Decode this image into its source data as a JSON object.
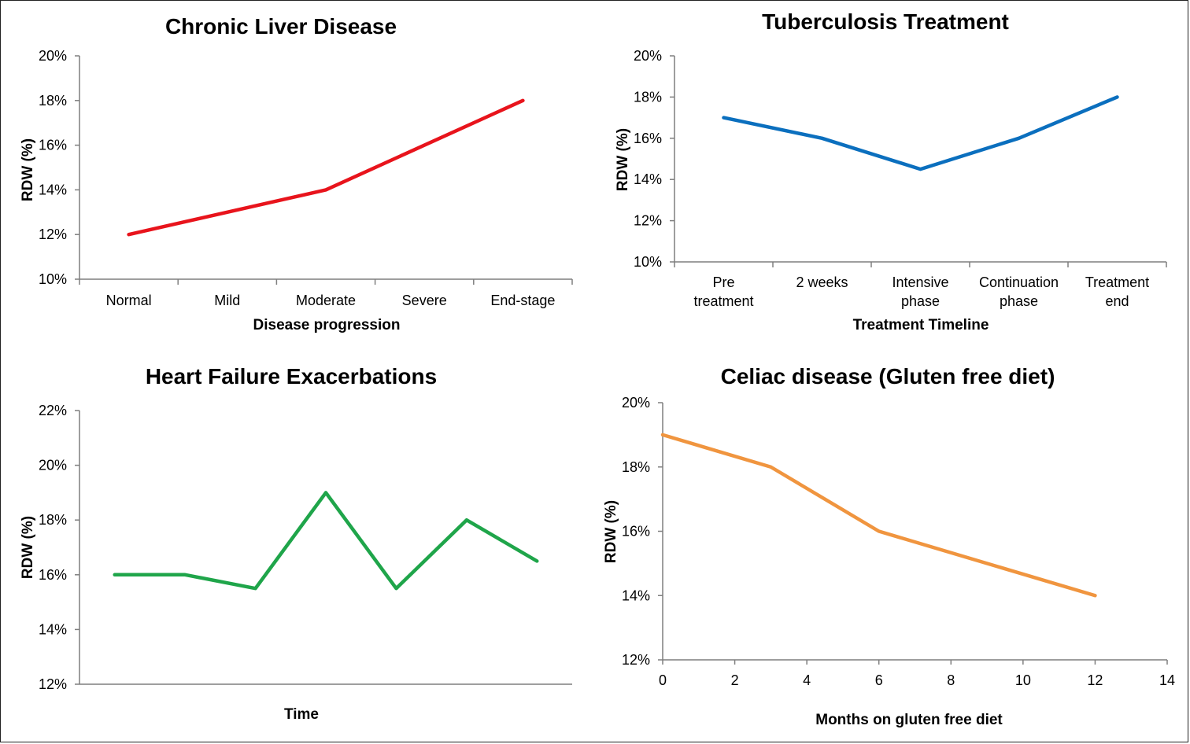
{
  "chart_data": [
    {
      "type": "line",
      "title": "Chronic Liver Disease",
      "xlabel": "Disease progression",
      "ylabel": "RDW (%)",
      "categories": [
        [
          "Normal"
        ],
        [
          "Mild"
        ],
        [
          "Moderate"
        ],
        [
          "Severe"
        ],
        [
          "End-stage"
        ]
      ],
      "series": [
        {
          "name": "RDW",
          "color": "#e8141c",
          "x": [
            0,
            2,
            4
          ],
          "values": [
            12,
            14,
            18
          ]
        }
      ],
      "x_kind": "category",
      "ylim": [
        10,
        20
      ],
      "ytick_step": 2,
      "ytick_labels": [
        "10%",
        "12%",
        "14%",
        "16%",
        "18%",
        "20%"
      ],
      "tick_marks": true
    },
    {
      "type": "line",
      "title": "Tuberculosis Treatment",
      "xlabel": "Treatment Timeline",
      "ylabel": "RDW (%)",
      "categories": [
        [
          "Pre",
          "treatment"
        ],
        [
          "2 weeks"
        ],
        [
          "Intensive",
          "phase"
        ],
        [
          "Continuation",
          "phase"
        ],
        [
          "Treatment",
          "end"
        ]
      ],
      "series": [
        {
          "name": "RDW",
          "color": "#0b6fbe",
          "x": [
            0,
            1,
            2,
            3,
            4
          ],
          "values": [
            17,
            16,
            14.5,
            16,
            18
          ]
        }
      ],
      "x_kind": "category",
      "ylim": [
        10,
        20
      ],
      "ytick_step": 2,
      "ytick_labels": [
        "10%",
        "12%",
        "14%",
        "16%",
        "18%",
        "20%"
      ],
      "tick_marks": true
    },
    {
      "type": "line",
      "title": "Heart Failure Exacerbations",
      "xlabel": "Time",
      "ylabel": "RDW (%)",
      "categories": [
        [
          ""
        ],
        [
          ""
        ],
        [
          ""
        ],
        [
          ""
        ],
        [
          ""
        ],
        [
          ""
        ],
        [
          ""
        ]
      ],
      "series": [
        {
          "name": "RDW",
          "color": "#1fa54a",
          "x": [
            0,
            1,
            2,
            3,
            4,
            5,
            6
          ],
          "values": [
            16,
            16,
            15.5,
            19,
            15.5,
            18,
            16.5
          ]
        }
      ],
      "x_kind": "category",
      "ylim": [
        12,
        22
      ],
      "ytick_step": 2,
      "ytick_labels": [
        "12%",
        "14%",
        "16%",
        "18%",
        "20%",
        "22%"
      ],
      "tick_marks": false
    },
    {
      "type": "line",
      "title": "Celiac disease (Gluten free diet)",
      "xlabel": "Months on gluten free diet",
      "ylabel": "RDW (%)",
      "series": [
        {
          "name": "RDW",
          "color": "#f0953f",
          "x": [
            0,
            3,
            6,
            12
          ],
          "values": [
            19,
            18,
            16,
            14
          ]
        }
      ],
      "x_kind": "numeric",
      "xlim": [
        0,
        14
      ],
      "xtick_step": 2,
      "xtick_labels": [
        "0",
        "2",
        "4",
        "6",
        "8",
        "10",
        "12",
        "14"
      ],
      "ylim": [
        12,
        20
      ],
      "ytick_step": 2,
      "ytick_labels": [
        "12%",
        "14%",
        "16%",
        "18%",
        "20%"
      ],
      "tick_marks": true
    }
  ]
}
